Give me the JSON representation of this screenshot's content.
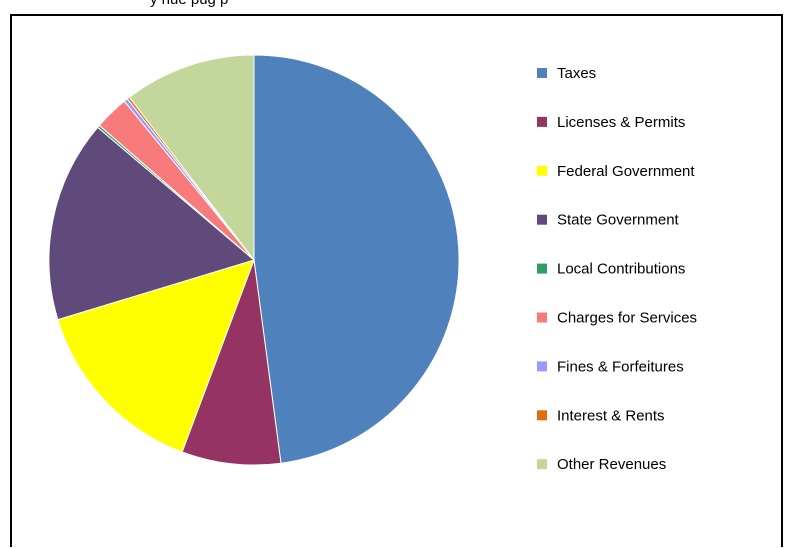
{
  "header": {
    "title": "y   nue     pug                             p"
  },
  "chart_data": {
    "type": "pie",
    "title": "",
    "legend_position": "right",
    "slices": [
      {
        "label": "Taxes",
        "value": 47.9,
        "color": "#4F81BD"
      },
      {
        "label": "Licenses & Permits",
        "value": 7.8,
        "color": "#953462"
      },
      {
        "label": "Federal Government",
        "value": 14.6,
        "color": "#FFFF00"
      },
      {
        "label": "State Government",
        "value": 15.9,
        "color": "#604A7B"
      },
      {
        "label": "Local Contributions",
        "value": 0.2,
        "color": "#2E9E6B"
      },
      {
        "label": "Charges for Services",
        "value": 2.7,
        "color": "#F87A7A"
      },
      {
        "label": "Fines & Forfeitures",
        "value": 0.3,
        "color": "#9999FF"
      },
      {
        "label": "Interest & Rents",
        "value": 0.2,
        "color": "#E46C0A"
      },
      {
        "label": "Other Revenues",
        "value": 10.4,
        "color": "#C4D79B"
      }
    ]
  }
}
